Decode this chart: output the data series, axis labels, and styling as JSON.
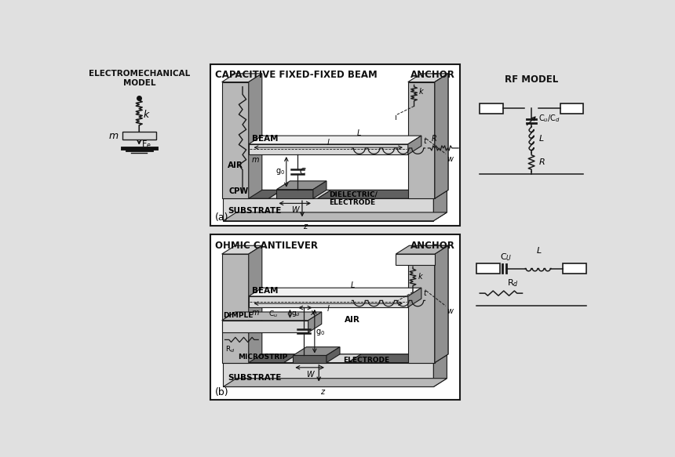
{
  "bg_color": "#e0e0e0",
  "line_color": "#1a1a1a",
  "dark_color": "#111111",
  "title_em": "ELECTROMECHANICAL\nMODEL",
  "title_rf": "RF MODEL",
  "label_a": "(a)",
  "label_b": "(b)",
  "section_a_title": "CAPACITIVE FIXED-FIXED BEAM",
  "section_b_title": "OHMIC CANTILEVER",
  "anchor": "ANCHOR",
  "substrate": "SUBSTRATE",
  "cpw": "CPW",
  "dielectric": "DIELECTRIC/\nELECTRODE",
  "microstrip": "MICROSTRIP",
  "electrode": "ELECTRODE",
  "beam": "BEAM",
  "air_a": "AIR",
  "air_b": "AIR",
  "dimple": "DIMPLE"
}
